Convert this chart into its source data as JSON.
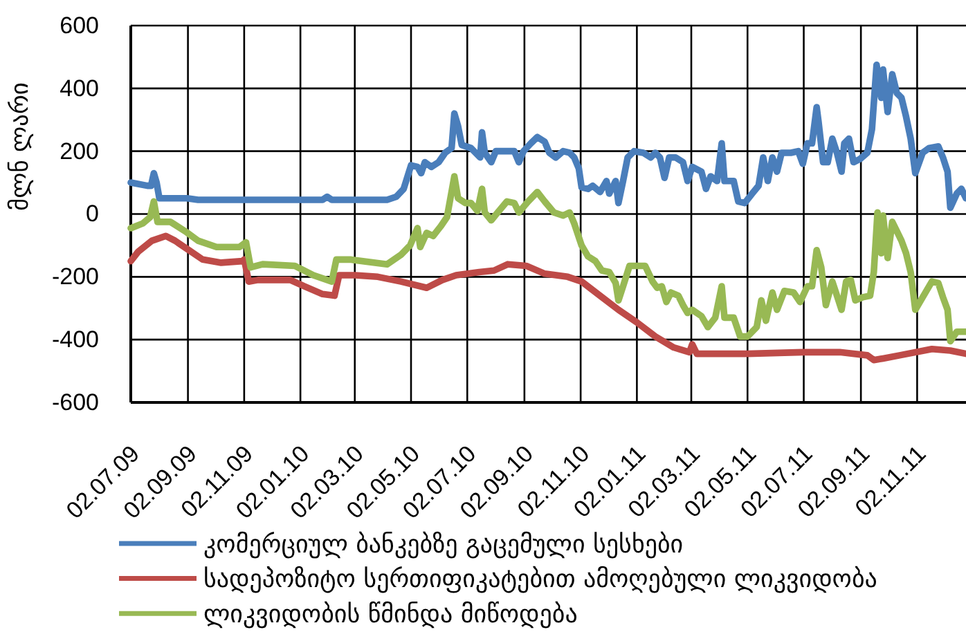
{
  "chart_data": {
    "type": "line",
    "ylabel": "მლნ ლარი",
    "xlim": [
      "2009-07-02",
      "2011-12-25"
    ],
    "xticks": [
      {
        "value": "2009-07-02",
        "label": "02.07.09"
      },
      {
        "value": "2009-09-02",
        "label": "02.09.09"
      },
      {
        "value": "2009-11-02",
        "label": "02.11.09"
      },
      {
        "value": "2010-01-02",
        "label": "02.01.10"
      },
      {
        "value": "2010-03-02",
        "label": "02.03.10"
      },
      {
        "value": "2010-05-02",
        "label": "02.05.10"
      },
      {
        "value": "2010-07-02",
        "label": "02.07.10"
      },
      {
        "value": "2010-09-02",
        "label": "02.09.10"
      },
      {
        "value": "2010-11-02",
        "label": "02.11.10"
      },
      {
        "value": "2011-01-02",
        "label": "02.01.11"
      },
      {
        "value": "2011-03-02",
        "label": "02.03.11"
      },
      {
        "value": "2011-05-02",
        "label": "02.05.11"
      },
      {
        "value": "2011-07-02",
        "label": "02.07.11"
      },
      {
        "value": "2011-09-02",
        "label": "02.09.11"
      },
      {
        "value": "2011-11-02",
        "label": "02.11.11"
      }
    ],
    "ylim": [
      -600,
      600
    ],
    "yticks": [
      -600,
      -400,
      -200,
      0,
      200,
      400,
      600
    ],
    "grid": true,
    "legend": "bottom",
    "line_style": "solid",
    "series": [
      {
        "name": "კომერციულ ბანკებზე გაცემული სესხები",
        "color": "#4a7ebb",
        "x": [
          "2009-07-02",
          "2009-07-20",
          "2009-07-24",
          "2009-07-27",
          "2009-07-30",
          "2009-08-02",
          "2009-09-01",
          "2009-09-13",
          "2010-01-26",
          "2010-01-31",
          "2010-02-05",
          "2010-04-06",
          "2010-04-16",
          "2010-04-24",
          "2010-05-02",
          "2010-05-09",
          "2010-05-13",
          "2010-05-17",
          "2010-05-24",
          "2010-06-01",
          "2010-06-08",
          "2010-06-15",
          "2010-06-18",
          "2010-06-22",
          "2010-06-26",
          "2010-07-06",
          "2010-07-16",
          "2010-07-18",
          "2010-07-21",
          "2010-07-28",
          "2010-08-02",
          "2010-08-22",
          "2010-08-27",
          "2010-09-01",
          "2010-09-09",
          "2010-09-16",
          "2010-09-24",
          "2010-09-29",
          "2010-10-06",
          "2010-10-14",
          "2010-10-21",
          "2010-10-26",
          "2010-10-31",
          "2010-11-03",
          "2010-11-10",
          "2010-11-15",
          "2010-11-23",
          "2010-11-30",
          "2010-12-03",
          "2010-12-10",
          "2010-12-13",
          "2010-12-18",
          "2010-12-23",
          "2010-12-30",
          "2011-01-09",
          "2011-01-17",
          "2011-01-22",
          "2011-01-27",
          "2011-02-01",
          "2011-02-06",
          "2011-02-13",
          "2011-02-21",
          "2011-02-26",
          "2011-03-03",
          "2011-03-13",
          "2011-03-18",
          "2011-03-23",
          "2011-03-30",
          "2011-04-04",
          "2011-04-07",
          "2011-04-17",
          "2011-04-22",
          "2011-04-29",
          "2011-05-07",
          "2011-05-14",
          "2011-05-19",
          "2011-05-24",
          "2011-05-29",
          "2011-06-03",
          "2011-06-08",
          "2011-06-18",
          "2011-06-26",
          "2011-07-01",
          "2011-07-06",
          "2011-07-11",
          "2011-07-16",
          "2011-07-18",
          "2011-07-23",
          "2011-07-28",
          "2011-08-02",
          "2011-08-07",
          "2011-08-12",
          "2011-08-15",
          "2011-08-20",
          "2011-08-25",
          "2011-09-01",
          "2011-09-09",
          "2011-09-14",
          "2011-09-19",
          "2011-09-24",
          "2011-09-26",
          "2011-10-01",
          "2011-10-06",
          "2011-10-11",
          "2011-10-16",
          "2011-10-21",
          "2011-10-26",
          "2011-10-31",
          "2011-11-08",
          "2011-11-15",
          "2011-11-25",
          "2011-11-30",
          "2011-12-05",
          "2011-12-08",
          "2011-12-15",
          "2011-12-20",
          "2011-12-25"
        ],
        "values": [
          100,
          90,
          90,
          130,
          100,
          50,
          50,
          45,
          45,
          55,
          45,
          45,
          55,
          80,
          155,
          150,
          130,
          165,
          150,
          165,
          195,
          210,
          320,
          280,
          220,
          210,
          180,
          260,
          195,
          165,
          200,
          200,
          165,
          200,
          225,
          245,
          230,
          195,
          180,
          200,
          195,
          180,
          145,
          85,
          80,
          90,
          70,
          105,
          65,
          105,
          35,
          105,
          180,
          200,
          195,
          180,
          195,
          180,
          115,
          180,
          180,
          165,
          105,
          150,
          135,
          80,
          120,
          105,
          225,
          105,
          105,
          40,
          35,
          65,
          90,
          180,
          105,
          180,
          135,
          195,
          195,
          200,
          160,
          225,
          225,
          340,
          295,
          165,
          165,
          240,
          195,
          135,
          225,
          240,
          165,
          175,
          195,
          270,
          475,
          370,
          460,
          325,
          445,
          385,
          370,
          310,
          240,
          130,
          195,
          210,
          215,
          180,
          135,
          20,
          65,
          80,
          50
        ]
      },
      {
        "name": "სადეპოზიტო სერთიფიკატებით ამოღებული ლიკვიდობა",
        "color": "#be4b48",
        "x": [
          "2009-07-02",
          "2009-07-10",
          "2009-07-25",
          "2009-08-09",
          "2009-08-19",
          "2009-09-03",
          "2009-09-18",
          "2009-10-08",
          "2009-10-31",
          "2009-11-02",
          "2009-11-07",
          "2009-11-17",
          "2009-12-22",
          "2010-01-06",
          "2010-01-26",
          "2010-02-08",
          "2010-02-13",
          "2010-03-02",
          "2010-03-27",
          "2010-04-21",
          "2010-05-19",
          "2010-06-05",
          "2010-06-20",
          "2010-07-15",
          "2010-07-31",
          "2010-08-15",
          "2010-09-04",
          "2010-09-24",
          "2010-10-19",
          "2010-11-03",
          "2010-11-23",
          "2010-12-13",
          "2011-01-02",
          "2011-01-22",
          "2011-02-11",
          "2011-02-28",
          "2011-03-03",
          "2011-03-08",
          "2011-05-02",
          "2011-07-01",
          "2011-08-10",
          "2011-09-09",
          "2011-09-16",
          "2011-09-26",
          "2011-10-14",
          "2011-11-18",
          "2011-12-08",
          "2011-12-25"
        ],
        "values": [
          -150,
          -120,
          -85,
          -70,
          -85,
          -115,
          -145,
          -155,
          -150,
          -145,
          -215,
          -210,
          -210,
          -230,
          -255,
          -260,
          -195,
          -195,
          -200,
          -215,
          -235,
          -210,
          -195,
          -185,
          -180,
          -160,
          -165,
          -190,
          -200,
          -215,
          -260,
          -305,
          -345,
          -390,
          -425,
          -440,
          -415,
          -445,
          -445,
          -440,
          -440,
          -450,
          -465,
          -460,
          -450,
          -430,
          -435,
          -445
        ]
      },
      {
        "name": "ლიკვიდობის წმინდა მიწოდება",
        "color": "#98b954",
        "x": [
          "2009-07-02",
          "2009-07-15",
          "2009-07-23",
          "2009-07-27",
          "2009-07-31",
          "2009-08-14",
          "2009-08-30",
          "2009-09-13",
          "2009-10-03",
          "2009-10-28",
          "2009-11-04",
          "2009-11-09",
          "2009-11-22",
          "2009-12-27",
          "2010-01-16",
          "2010-02-05",
          "2010-02-10",
          "2010-02-25",
          "2010-04-06",
          "2010-04-21",
          "2010-05-01",
          "2010-05-09",
          "2010-05-12",
          "2010-05-19",
          "2010-05-26",
          "2010-06-03",
          "2010-06-10",
          "2010-06-18",
          "2010-06-22",
          "2010-06-30",
          "2010-07-06",
          "2010-07-13",
          "2010-07-18",
          "2010-07-21",
          "2010-07-28",
          "2010-08-04",
          "2010-08-14",
          "2010-08-22",
          "2010-08-27",
          "2010-09-06",
          "2010-09-16",
          "2010-09-24",
          "2010-10-04",
          "2010-10-14",
          "2010-10-21",
          "2010-10-26",
          "2010-11-03",
          "2010-11-10",
          "2010-11-18",
          "2010-11-25",
          "2010-12-03",
          "2010-12-10",
          "2010-12-13",
          "2010-12-18",
          "2010-12-25",
          "2011-01-11",
          "2011-01-19",
          "2011-01-24",
          "2011-01-29",
          "2011-02-03",
          "2011-02-08",
          "2011-02-16",
          "2011-02-21",
          "2011-02-26",
          "2011-03-03",
          "2011-03-13",
          "2011-03-20",
          "2011-03-28",
          "2011-04-04",
          "2011-04-07",
          "2011-04-17",
          "2011-04-24",
          "2011-05-02",
          "2011-05-12",
          "2011-05-17",
          "2011-05-22",
          "2011-05-29",
          "2011-06-03",
          "2011-06-11",
          "2011-06-21",
          "2011-06-28",
          "2011-07-06",
          "2011-07-11",
          "2011-07-16",
          "2011-07-21",
          "2011-07-26",
          "2011-08-02",
          "2011-08-07",
          "2011-08-12",
          "2011-08-17",
          "2011-08-22",
          "2011-08-27",
          "2011-09-04",
          "2011-09-12",
          "2011-09-16",
          "2011-09-20",
          "2011-09-24",
          "2011-09-26",
          "2011-10-01",
          "2011-10-06",
          "2011-10-11",
          "2011-10-16",
          "2011-10-21",
          "2011-10-26",
          "2011-10-31",
          "2011-11-08",
          "2011-11-18",
          "2011-11-25",
          "2011-11-30",
          "2011-12-05",
          "2011-12-08",
          "2011-12-15",
          "2011-12-25"
        ],
        "values": [
          -45,
          -30,
          -10,
          40,
          -25,
          -25,
          -55,
          -85,
          -105,
          -105,
          -90,
          -170,
          -160,
          -165,
          -195,
          -215,
          -145,
          -145,
          -160,
          -130,
          -100,
          -45,
          -105,
          -60,
          -70,
          -40,
          -10,
          120,
          50,
          35,
          35,
          10,
          80,
          5,
          -20,
          5,
          40,
          35,
          5,
          40,
          70,
          40,
          5,
          -5,
          5,
          -30,
          -100,
          -135,
          -150,
          -180,
          -185,
          -220,
          -275,
          -230,
          -165,
          -165,
          -215,
          -235,
          -230,
          -280,
          -250,
          -260,
          -290,
          -315,
          -305,
          -325,
          -360,
          -330,
          -230,
          -330,
          -330,
          -390,
          -390,
          -360,
          -275,
          -340,
          -250,
          -305,
          -245,
          -250,
          -280,
          -230,
          -230,
          -115,
          -170,
          -290,
          -215,
          -260,
          -305,
          -215,
          -210,
          -275,
          -265,
          -260,
          -185,
          5,
          -125,
          -5,
          -140,
          -25,
          -55,
          -85,
          -125,
          -185,
          -305,
          -265,
          -215,
          -220,
          -265,
          -305,
          -405,
          -375,
          -375
        ]
      }
    ]
  }
}
